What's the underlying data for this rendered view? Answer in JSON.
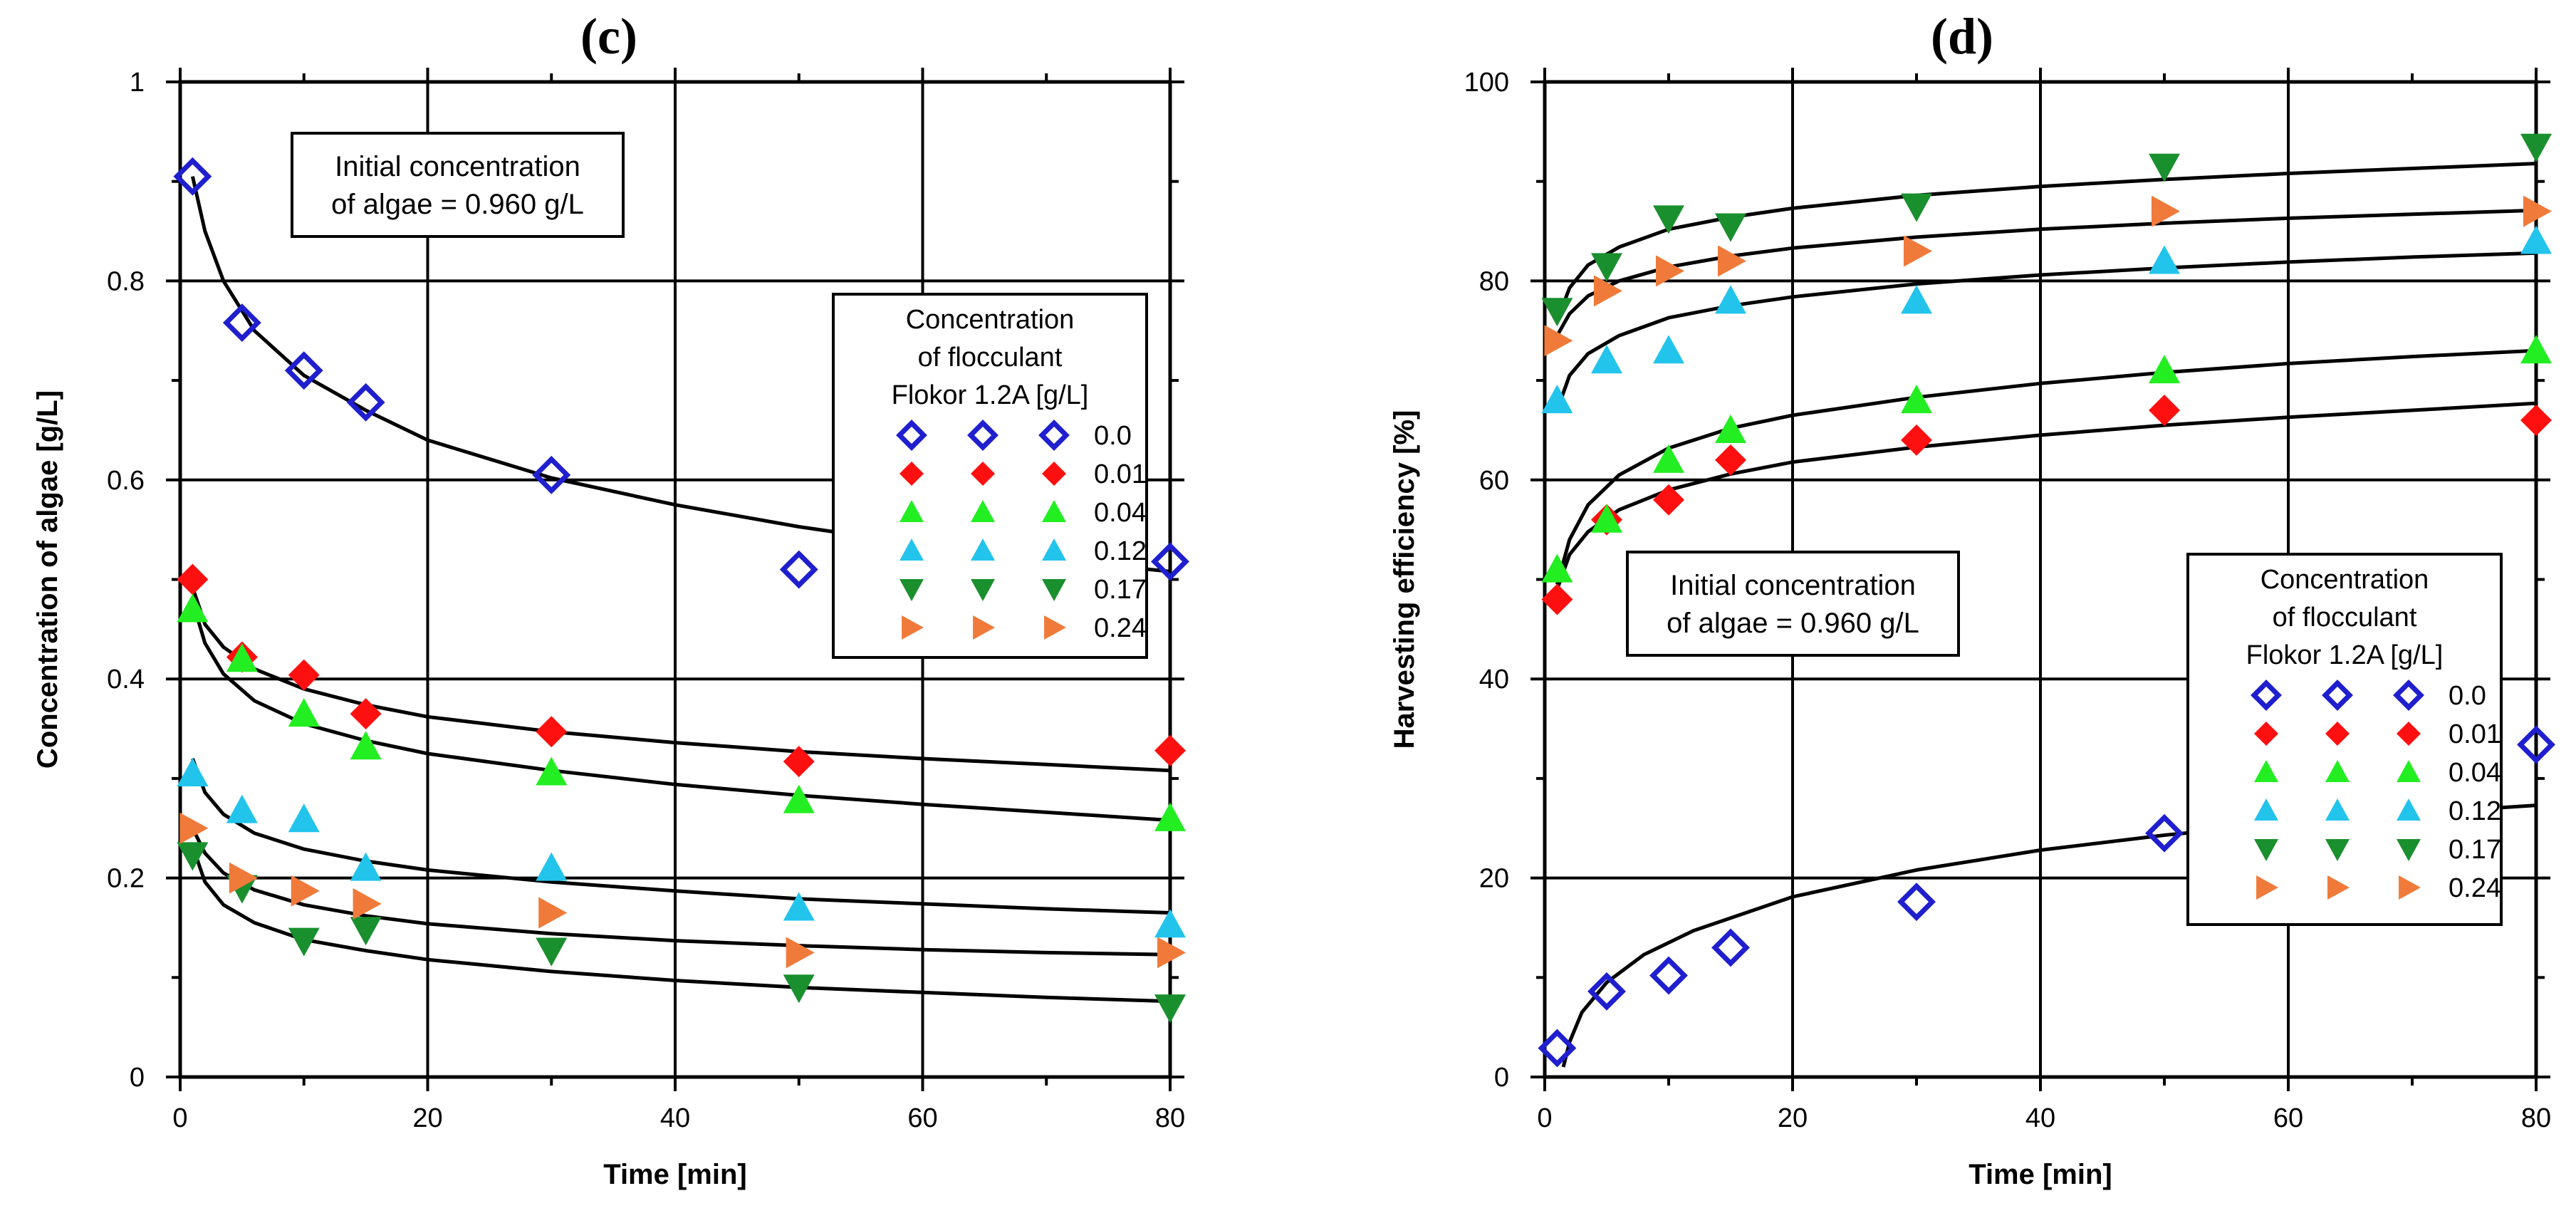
{
  "chart_data": [
    {
      "type": "scatter",
      "panel": "(c)",
      "xlabel": "Time [min]",
      "ylabel": "Concentration of algae [g/L]",
      "xlim": [
        0,
        80
      ],
      "ylim": [
        0,
        1
      ],
      "xticks": [
        0,
        20,
        40,
        60,
        80
      ],
      "yticks": [
        0,
        0.2,
        0.4,
        0.6,
        0.8,
        1
      ],
      "xtick_labels": [
        "0",
        "20",
        "40",
        "60",
        "80"
      ],
      "ytick_labels": [
        "0",
        "0.2",
        "0.4",
        "0.6",
        "0.8",
        "1"
      ],
      "grid": true,
      "annotation_lines": [
        "Initial concentration",
        "of algae = 0.960 g/L"
      ],
      "legend": {
        "placement": "center-right",
        "title_lines": [
          "Concentration",
          "of flocculant",
          "Flokor 1.2A [g/L]"
        ]
      },
      "series": [
        {
          "name": "0.0",
          "marker": "diamond-open",
          "color": "#1f1fcf",
          "x": [
            1,
            5,
            10,
            15,
            30,
            50,
            80
          ],
          "y": [
            0.905,
            0.758,
            0.71,
            0.678,
            0.605,
            0.51,
            0.518
          ],
          "fit": [
            [
              1,
              0.905
            ],
            [
              2,
              0.85
            ],
            [
              3.5,
              0.8
            ],
            [
              6,
              0.75
            ],
            [
              10,
              0.705
            ],
            [
              15,
              0.67
            ],
            [
              20,
              0.64
            ],
            [
              30,
              0.602
            ],
            [
              40,
              0.575
            ],
            [
              50,
              0.553
            ],
            [
              60,
              0.535
            ],
            [
              70,
              0.52
            ],
            [
              80,
              0.508
            ]
          ]
        },
        {
          "name": "0.01",
          "marker": "diamond-filled",
          "color": "#ff1010",
          "x": [
            1,
            5,
            10,
            15,
            30,
            50,
            80
          ],
          "y": [
            0.5,
            0.422,
            0.404,
            0.365,
            0.347,
            0.317,
            0.328
          ],
          "fit": [
            [
              1,
              0.492
            ],
            [
              2,
              0.455
            ],
            [
              3.5,
              0.432
            ],
            [
              6,
              0.41
            ],
            [
              10,
              0.39
            ],
            [
              15,
              0.374
            ],
            [
              20,
              0.362
            ],
            [
              30,
              0.347
            ],
            [
              40,
              0.336
            ],
            [
              50,
              0.327
            ],
            [
              60,
              0.32
            ],
            [
              70,
              0.314
            ],
            [
              80,
              0.308
            ]
          ]
        },
        {
          "name": "0.04",
          "marker": "triangle-up",
          "color": "#22ee22",
          "x": [
            1,
            5,
            10,
            15,
            30,
            50,
            80
          ],
          "y": [
            0.47,
            0.42,
            0.365,
            0.332,
            0.306,
            0.278,
            0.26
          ],
          "fit": [
            [
              1,
              0.478
            ],
            [
              2,
              0.436
            ],
            [
              3.5,
              0.405
            ],
            [
              6,
              0.378
            ],
            [
              10,
              0.355
            ],
            [
              15,
              0.338
            ],
            [
              20,
              0.325
            ],
            [
              30,
              0.308
            ],
            [
              40,
              0.294
            ],
            [
              50,
              0.283
            ],
            [
              60,
              0.274
            ],
            [
              70,
              0.266
            ],
            [
              80,
              0.258
            ]
          ]
        },
        {
          "name": "0.12",
          "marker": "triangle-up",
          "color": "#22c4ec",
          "x": [
            1,
            5,
            10,
            15,
            30,
            50,
            80
          ],
          "y": [
            0.305,
            0.268,
            0.259,
            0.21,
            0.21,
            0.17,
            0.153
          ],
          "fit": [
            [
              1,
              0.32
            ],
            [
              2,
              0.286
            ],
            [
              3.5,
              0.264
            ],
            [
              6,
              0.245
            ],
            [
              10,
              0.229
            ],
            [
              15,
              0.217
            ],
            [
              20,
              0.208
            ],
            [
              30,
              0.196
            ],
            [
              40,
              0.187
            ],
            [
              50,
              0.179
            ],
            [
              60,
              0.174
            ],
            [
              70,
              0.169
            ],
            [
              80,
              0.165
            ]
          ]
        },
        {
          "name": "0.17",
          "marker": "triangle-down",
          "color": "#1a8f2e",
          "x": [
            1,
            5,
            10,
            15,
            30,
            50,
            80
          ],
          "y": [
            0.223,
            0.19,
            0.137,
            0.148,
            0.127,
            0.09,
            0.07
          ],
          "fit": [
            [
              1,
              0.232
            ],
            [
              2,
              0.196
            ],
            [
              3.5,
              0.173
            ],
            [
              6,
              0.155
            ],
            [
              10,
              0.138
            ],
            [
              15,
              0.127
            ],
            [
              20,
              0.118
            ],
            [
              30,
              0.106
            ],
            [
              40,
              0.097
            ],
            [
              50,
              0.09
            ],
            [
              60,
              0.085
            ],
            [
              70,
              0.08
            ],
            [
              80,
              0.076
            ]
          ]
        },
        {
          "name": "0.24",
          "marker": "triangle-right",
          "color": "#f07a3a",
          "x": [
            1,
            5,
            10,
            15,
            30,
            50,
            80
          ],
          "y": [
            0.25,
            0.2,
            0.187,
            0.174,
            0.165,
            0.125,
            0.125
          ],
          "fit": [
            [
              1,
              0.25
            ],
            [
              2,
              0.225
            ],
            [
              3.5,
              0.205
            ],
            [
              6,
              0.188
            ],
            [
              10,
              0.173
            ],
            [
              15,
              0.162
            ],
            [
              20,
              0.154
            ],
            [
              30,
              0.144
            ],
            [
              40,
              0.137
            ],
            [
              50,
              0.132
            ],
            [
              60,
              0.128
            ],
            [
              70,
              0.125
            ],
            [
              80,
              0.123
            ]
          ]
        }
      ]
    },
    {
      "type": "scatter",
      "panel": "(d)",
      "xlabel": "Time [min]",
      "ylabel": "Harvesting efficiency [%]",
      "xlim": [
        0,
        80
      ],
      "ylim": [
        0,
        100
      ],
      "xticks": [
        0,
        20,
        40,
        60,
        80
      ],
      "yticks": [
        0,
        20,
        40,
        60,
        80,
        100
      ],
      "xtick_labels": [
        "0",
        "20",
        "40",
        "60",
        "80"
      ],
      "ytick_labels": [
        "0",
        "20",
        "40",
        "60",
        "80",
        "100"
      ],
      "grid": true,
      "annotation_lines": [
        "Initial concentration",
        "of algae = 0.960 g/L"
      ],
      "legend": {
        "placement": "bottom-right",
        "title_lines": [
          "Concentration",
          "of flocculant",
          "Flokor 1.2A [g/L]"
        ]
      },
      "series": [
        {
          "name": "0.0",
          "marker": "diamond-open",
          "color": "#1f1fcf",
          "x": [
            1,
            5,
            10,
            15,
            30,
            50,
            80
          ],
          "y": [
            2.9,
            8.6,
            10.2,
            13,
            17.6,
            24.5,
            33.4
          ],
          "fit": [
            [
              1.5,
              1
            ],
            [
              2,
              3.5
            ],
            [
              3,
              6.5
            ],
            [
              5,
              9.5
            ],
            [
              8,
              12.3
            ],
            [
              12,
              14.7
            ],
            [
              20,
              18.1
            ],
            [
              30,
              20.8
            ],
            [
              40,
              22.8
            ],
            [
              50,
              24.3
            ],
            [
              60,
              25.5
            ],
            [
              70,
              26.5
            ],
            [
              80,
              27.3
            ]
          ]
        },
        {
          "name": "0.01",
          "marker": "diamond-filled",
          "color": "#ff1010",
          "x": [
            1,
            5,
            10,
            15,
            30,
            50,
            80
          ],
          "y": [
            48,
            56,
            58,
            62,
            64,
            67,
            66
          ],
          "fit": [
            [
              1,
              49
            ],
            [
              2,
              52.5
            ],
            [
              3.5,
              54.8
            ],
            [
              6,
              57
            ],
            [
              10,
              59
            ],
            [
              15,
              60.6
            ],
            [
              20,
              61.8
            ],
            [
              30,
              63.3
            ],
            [
              40,
              64.5
            ],
            [
              50,
              65.5
            ],
            [
              60,
              66.3
            ],
            [
              70,
              67
            ],
            [
              80,
              67.7
            ]
          ]
        },
        {
          "name": "0.04",
          "marker": "triangle-up",
          "color": "#22ee22",
          "x": [
            1,
            5,
            10,
            15,
            30,
            50,
            80
          ],
          "y": [
            51,
            56,
            62,
            65,
            68,
            71,
            73
          ],
          "fit": [
            [
              1,
              49.5
            ],
            [
              2,
              54
            ],
            [
              3.5,
              57.5
            ],
            [
              6,
              60.5
            ],
            [
              10,
              63.2
            ],
            [
              15,
              65.2
            ],
            [
              20,
              66.5
            ],
            [
              30,
              68.3
            ],
            [
              40,
              69.7
            ],
            [
              50,
              70.8
            ],
            [
              60,
              71.7
            ],
            [
              70,
              72.4
            ],
            [
              80,
              73
            ]
          ]
        },
        {
          "name": "0.12",
          "marker": "triangle-up",
          "color": "#22c4ec",
          "x": [
            1,
            5,
            10,
            15,
            30,
            50,
            80
          ],
          "y": [
            68,
            72,
            73,
            78,
            78,
            82,
            84
          ],
          "fit": [
            [
              1,
              67
            ],
            [
              2,
              70.5
            ],
            [
              3.5,
              72.7
            ],
            [
              6,
              74.5
            ],
            [
              10,
              76.3
            ],
            [
              15,
              77.5
            ],
            [
              20,
              78.4
            ],
            [
              30,
              79.7
            ],
            [
              40,
              80.6
            ],
            [
              50,
              81.3
            ],
            [
              60,
              81.9
            ],
            [
              70,
              82.4
            ],
            [
              80,
              82.8
            ]
          ]
        },
        {
          "name": "0.17",
          "marker": "triangle-down",
          "color": "#1a8f2e",
          "x": [
            1,
            5,
            10,
            15,
            30,
            50,
            80
          ],
          "y": [
            77,
            81.5,
            86.3,
            85.5,
            87.5,
            91.5,
            93.5
          ],
          "fit": [
            [
              1,
              76
            ],
            [
              2,
              79.3
            ],
            [
              3.5,
              81.6
            ],
            [
              6,
              83.4
            ],
            [
              10,
              85.2
            ],
            [
              15,
              86.4
            ],
            [
              20,
              87.3
            ],
            [
              30,
              88.6
            ],
            [
              40,
              89.5
            ],
            [
              50,
              90.2
            ],
            [
              60,
              90.8
            ],
            [
              70,
              91.3
            ],
            [
              80,
              91.8
            ]
          ]
        },
        {
          "name": "0.24",
          "marker": "triangle-right",
          "color": "#f07a3a",
          "x": [
            1,
            5,
            10,
            15,
            30,
            50,
            80
          ],
          "y": [
            74,
            79,
            81,
            82,
            83,
            87,
            87
          ],
          "fit": [
            [
              1,
              74.5
            ],
            [
              2,
              76.7
            ],
            [
              3.5,
              78.5
            ],
            [
              6,
              80
            ],
            [
              10,
              81.4
            ],
            [
              15,
              82.5
            ],
            [
              20,
              83.3
            ],
            [
              30,
              84.4
            ],
            [
              40,
              85.2
            ],
            [
              50,
              85.8
            ],
            [
              60,
              86.3
            ],
            [
              70,
              86.7
            ],
            [
              80,
              87.1
            ]
          ]
        }
      ]
    }
  ]
}
